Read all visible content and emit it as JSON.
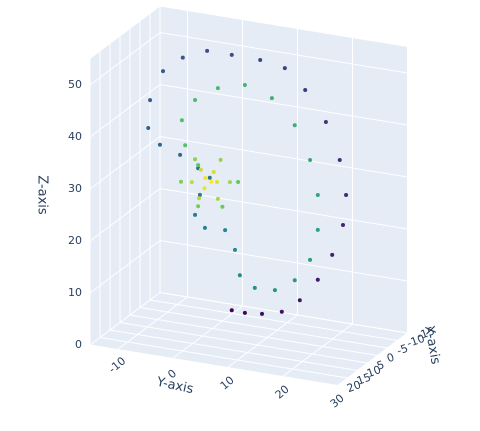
{
  "chart_data": {
    "type": "scatter3d",
    "x_title": "X-axis",
    "y_title": "Y-axis",
    "z_title": "Z-axis",
    "x": [
      2.2,
      3.6,
      5.5,
      7.7,
      9.7,
      11.7,
      13.3,
      14.5,
      14.9,
      14.2,
      12.6,
      10.3,
      8.1,
      5.3,
      2.2,
      -0.6,
      -3.3,
      -5.5,
      -7,
      -7.2,
      -5.9,
      -3.6,
      -1.6,
      -0.3,
      -1.4,
      -2,
      -0.9,
      1.4,
      2.5,
      3.1,
      4.7,
      7,
      9.2,
      10.9,
      11.7,
      11.7,
      10.9,
      9.2,
      6.6,
      3.6,
      0.6,
      -2,
      -3.4,
      -3.1,
      -1.6,
      2.9,
      1.1,
      -1.6,
      -3.5,
      -2,
      0.9,
      2,
      0.6,
      -1.5,
      -2.3,
      -1.3,
      0.2,
      0.5,
      -0.9,
      -0.8,
      -0.2
    ],
    "y": [
      4.3,
      7.2,
      11,
      15.4,
      19.4,
      23.4,
      26.6,
      29,
      29.7,
      28.3,
      25.2,
      20.6,
      16.1,
      10.6,
      4.3,
      -1.2,
      -6.6,
      -11,
      -13.9,
      -14.3,
      -11.7,
      -7.2,
      -3.2,
      -0.6,
      -2.8,
      -3.9,
      -1.7,
      2.8,
      5,
      6.1,
      9.4,
      13.9,
      18.3,
      21.7,
      23.4,
      23.4,
      21.7,
      18.3,
      13.2,
      7.2,
      1.2,
      -3.9,
      -6.8,
      -6.1,
      -3.2,
      5.7,
      2.2,
      -3.2,
      -7,
      -3.9,
      1.8,
      3.9,
      1.2,
      -3,
      -4.6,
      -2.6,
      0.3,
      1,
      -1.8,
      -1.6,
      -0.3
    ],
    "z": [
      4.9,
      5.3,
      6.3,
      8.1,
      11.6,
      16.8,
      22.6,
      29.1,
      35.1,
      41.4,
      47.7,
      52.4,
      55.2,
      55,
      54,
      53,
      50,
      46,
      39.5,
      34,
      31.6,
      31.1,
      29.8,
      28.8,
      24.8,
      20.6,
      18.8,
      19.8,
      16.7,
      12.2,
      10.8,
      11.8,
      15.1,
      20.1,
      26.4,
      33.1,
      39.3,
      44.9,
      48.5,
      49.1,
      46.6,
      42.7,
      37.9,
      33.3,
      30.4,
      30,
      24.1,
      22.5,
      26,
      31.3,
      33,
      29.4,
      25.3,
      24.1,
      26.7,
      29.7,
      30.2,
      28.5,
      26.4,
      28.4,
      28.1
    ],
    "colorscale": [
      "#440154",
      "#3b528b",
      "#21918c",
      "#5ec962",
      "#fde725"
    ],
    "xlim": [
      -15,
      20
    ],
    "ylim": [
      -15,
      30
    ],
    "zlim": [
      0,
      55
    ],
    "xticks": [
      -15,
      -10,
      -5,
      0,
      5,
      10,
      15,
      20
    ],
    "yticks": [
      -10,
      0,
      10,
      20,
      30
    ],
    "zticks": [
      0,
      10,
      20,
      30,
      40,
      50
    ],
    "grid": true
  }
}
